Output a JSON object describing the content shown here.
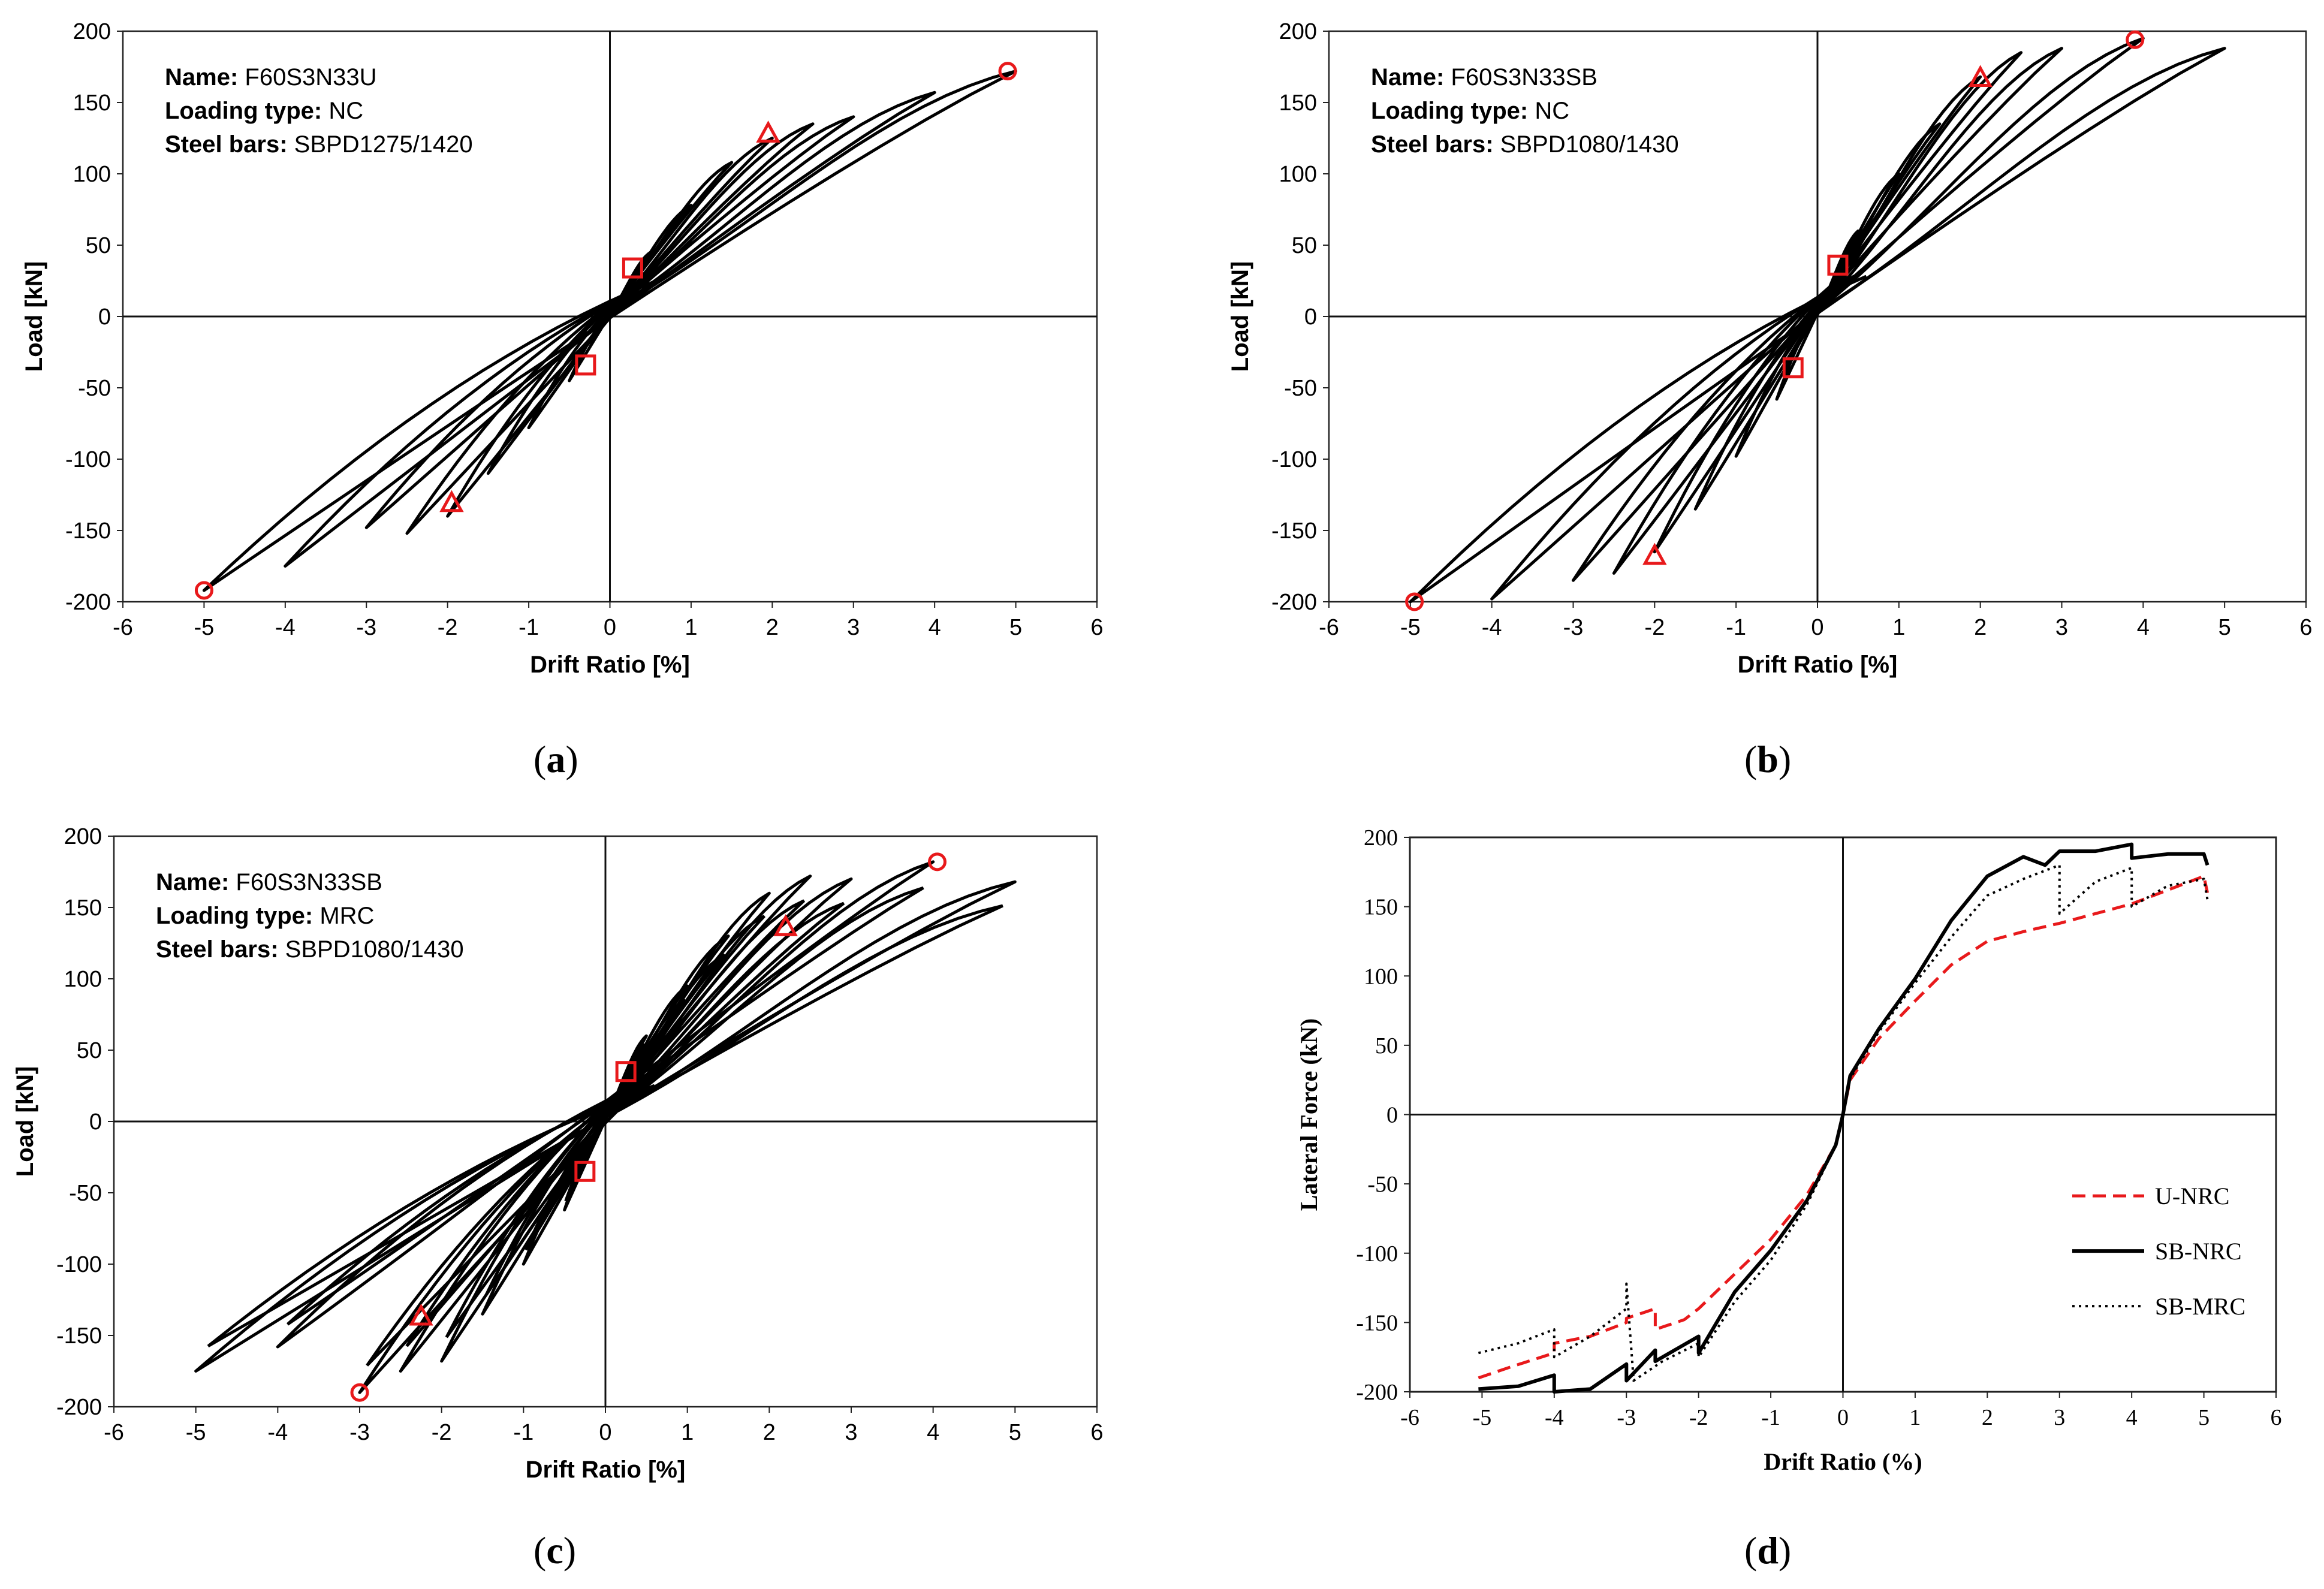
{
  "figure": {
    "captions": [
      "(a)",
      "(b)",
      "(c)",
      "(d)"
    ]
  },
  "colors": {
    "curve": "#000000",
    "marker": "#e8191b",
    "u_nrc": "#e8191b"
  },
  "chart_data": [
    {
      "id": "a",
      "type": "line",
      "caption_letter": "a",
      "xlabel": "Drift Ratio [%]",
      "ylabel": "Load [kN]",
      "xlim": [
        -6,
        6
      ],
      "ylim": [
        -200,
        200
      ],
      "xticks": [
        -6,
        -5,
        -4,
        -3,
        -2,
        -1,
        0,
        1,
        2,
        3,
        4,
        5,
        6
      ],
      "yticks": [
        -200,
        -150,
        -100,
        -50,
        0,
        50,
        100,
        150,
        200
      ],
      "info": [
        {
          "key": "Name:",
          "value": "F60S3N33U"
        },
        {
          "key": "Loading type:",
          "value": "NC"
        },
        {
          "key": "Steel bars:",
          "value": "SBPD1275/1420"
        }
      ],
      "cycles": [
        {
          "dpos": 0.5,
          "ppos": 45,
          "dneg": -0.5,
          "pneg": -45
        },
        {
          "dpos": 1.0,
          "ppos": 78,
          "dneg": -1.0,
          "pneg": -78
        },
        {
          "dpos": 1.5,
          "ppos": 108,
          "dneg": -1.5,
          "pneg": -110
        },
        {
          "dpos": 2.0,
          "ppos": 125,
          "dneg": -2.0,
          "pneg": -140
        },
        {
          "dpos": 2.5,
          "ppos": 135,
          "dneg": -2.5,
          "pneg": -152
        },
        {
          "dpos": 3.0,
          "ppos": 140,
          "dneg": -3.0,
          "pneg": -148
        },
        {
          "dpos": 4.0,
          "ppos": 157,
          "dneg": -4.0,
          "pneg": -175
        },
        {
          "dpos": 5.0,
          "ppos": 172,
          "dneg": -5.0,
          "pneg": -192
        }
      ],
      "markers": [
        {
          "shape": "circle",
          "x": 4.9,
          "y": 172
        },
        {
          "shape": "circle",
          "x": -5.0,
          "y": -192
        },
        {
          "shape": "triangle",
          "x": 1.95,
          "y": 128
        },
        {
          "shape": "triangle",
          "x": -1.95,
          "y": -131
        },
        {
          "shape": "square",
          "x": 0.28,
          "y": 34
        },
        {
          "shape": "square",
          "x": -0.3,
          "y": -34
        }
      ]
    },
    {
      "id": "b",
      "type": "line",
      "caption_letter": "b",
      "xlabel": "Drift Ratio [%]",
      "ylabel": "Load [kN]",
      "xlim": [
        -6,
        6
      ],
      "ylim": [
        -200,
        200
      ],
      "xticks": [
        -6,
        -5,
        -4,
        -3,
        -2,
        -1,
        0,
        1,
        2,
        3,
        4,
        5,
        6
      ],
      "yticks": [
        -200,
        -150,
        -100,
        -50,
        0,
        50,
        100,
        150,
        200
      ],
      "info": [
        {
          "key": "Name:",
          "value": "F60S3N33SB"
        },
        {
          "key": "Loading type:",
          "value": "NC"
        },
        {
          "key": "Steel bars:",
          "value": "SBPD1080/1430"
        }
      ],
      "cycles": [
        {
          "dpos": 0.5,
          "ppos": 60,
          "dneg": -0.5,
          "pneg": -58
        },
        {
          "dpos": 1.0,
          "ppos": 100,
          "dneg": -1.0,
          "pneg": -98
        },
        {
          "dpos": 1.5,
          "ppos": 135,
          "dneg": -1.5,
          "pneg": -135
        },
        {
          "dpos": 2.0,
          "ppos": 168,
          "dneg": -2.0,
          "pneg": -165
        },
        {
          "dpos": 2.5,
          "ppos": 185,
          "dneg": -2.5,
          "pneg": -180
        },
        {
          "dpos": 3.0,
          "ppos": 188,
          "dneg": -3.0,
          "pneg": -185
        },
        {
          "dpos": 4.0,
          "ppos": 195,
          "dneg": -4.0,
          "pneg": -198
        },
        {
          "dpos": 5.0,
          "ppos": 188,
          "dneg": -5.0,
          "pneg": -200
        }
      ],
      "markers": [
        {
          "shape": "circle",
          "x": 3.9,
          "y": 194
        },
        {
          "shape": "circle",
          "x": -4.95,
          "y": -200
        },
        {
          "shape": "triangle",
          "x": 2.0,
          "y": 167
        },
        {
          "shape": "triangle",
          "x": -2.0,
          "y": -168
        },
        {
          "shape": "square",
          "x": 0.25,
          "y": 36
        },
        {
          "shape": "square",
          "x": -0.3,
          "y": -36
        }
      ]
    },
    {
      "id": "c",
      "type": "line",
      "caption_letter": "c",
      "xlabel": "Drift Ratio [%]",
      "ylabel": "Load [kN]",
      "xlim": [
        -6,
        6
      ],
      "ylim": [
        -200,
        200
      ],
      "xticks": [
        -6,
        -5,
        -4,
        -3,
        -2,
        -1,
        0,
        1,
        2,
        3,
        4,
        5,
        6
      ],
      "yticks": [
        -200,
        -150,
        -100,
        -50,
        0,
        50,
        100,
        150,
        200
      ],
      "info": [
        {
          "key": "Name:",
          "value": "F60S3N33SB"
        },
        {
          "key": "Loading type:",
          "value": "MRC"
        },
        {
          "key": "Steel bars:",
          "value": "SBPD1080/1430"
        }
      ],
      "cycles": [
        {
          "dpos": 0.5,
          "ppos": 60,
          "dneg": -0.5,
          "pneg": -62
        },
        {
          "dpos": 1.0,
          "ppos": 95,
          "dneg": -1.0,
          "pneg": -100
        },
        {
          "dpos": 1.5,
          "ppos": 130,
          "dneg": -1.5,
          "pneg": -135
        },
        {
          "dpos": 2.0,
          "ppos": 160,
          "dneg": -2.0,
          "pneg": -168
        },
        {
          "dpos": 2.5,
          "ppos": 172,
          "dneg": -2.5,
          "pneg": -175
        },
        {
          "dpos": 3.0,
          "ppos": 170,
          "dneg": -3.0,
          "pneg": -190
        },
        {
          "dpos": 4.0,
          "ppos": 182,
          "dneg": -4.0,
          "pneg": -158
        },
        {
          "dpos": 5.0,
          "ppos": 168,
          "dneg": -5.0,
          "pneg": -175
        }
      ],
      "markers": [
        {
          "shape": "circle",
          "x": 4.05,
          "y": 182
        },
        {
          "shape": "circle",
          "x": -3.0,
          "y": -190
        },
        {
          "shape": "triangle",
          "x": 2.2,
          "y": 136
        },
        {
          "shape": "triangle",
          "x": -2.25,
          "y": -137
        },
        {
          "shape": "square",
          "x": 0.25,
          "y": 35
        },
        {
          "shape": "square",
          "x": -0.25,
          "y": -35
        }
      ]
    },
    {
      "id": "d",
      "type": "line",
      "caption_letter": "d",
      "xlabel": "Drift Ratio (%)",
      "ylabel": "Lateral Force (kN)",
      "xlim": [
        -6,
        6
      ],
      "ylim": [
        -200,
        200
      ],
      "xticks": [
        -6,
        -5,
        -4,
        -3,
        -2,
        -1,
        0,
        1,
        2,
        3,
        4,
        5,
        6
      ],
      "yticks": [
        -200,
        -150,
        -100,
        -50,
        0,
        50,
        100,
        150,
        200
      ],
      "legend_position": "lower-right",
      "series": [
        {
          "name": "U-NRC",
          "style": "dashed",
          "points": [
            [
              -5.05,
              -190
            ],
            [
              -4.6,
              -182
            ],
            [
              -4.0,
              -172
            ],
            [
              -4.0,
              -165
            ],
            [
              -3.5,
              -160
            ],
            [
              -3.0,
              -150
            ],
            [
              -3.0,
              -147
            ],
            [
              -2.6,
              -140
            ],
            [
              -2.6,
              -155
            ],
            [
              -2.2,
              -148
            ],
            [
              -2.0,
              -140
            ],
            [
              -1.5,
              -115
            ],
            [
              -1.0,
              -90
            ],
            [
              -0.5,
              -58
            ],
            [
              -0.1,
              -22
            ],
            [
              0,
              0
            ],
            [
              0.1,
              25
            ],
            [
              0.5,
              55
            ],
            [
              1.0,
              82
            ],
            [
              1.5,
              108
            ],
            [
              2.0,
              125
            ],
            [
              2.5,
              132
            ],
            [
              3.0,
              138
            ],
            [
              3.5,
              145
            ],
            [
              4.0,
              152
            ],
            [
              4.5,
              162
            ],
            [
              5.0,
              172
            ],
            [
              5.05,
              160
            ]
          ]
        },
        {
          "name": "SB-NRC",
          "style": "solid",
          "points": [
            [
              -5.05,
              -198
            ],
            [
              -4.5,
              -196
            ],
            [
              -4.0,
              -188
            ],
            [
              -4.0,
              -200
            ],
            [
              -3.5,
              -198
            ],
            [
              -3.0,
              -180
            ],
            [
              -3.0,
              -192
            ],
            [
              -2.6,
              -170
            ],
            [
              -2.6,
              -178
            ],
            [
              -2.0,
              -160
            ],
            [
              -2.0,
              -172
            ],
            [
              -1.5,
              -128
            ],
            [
              -1.0,
              -98
            ],
            [
              -0.5,
              -62
            ],
            [
              -0.1,
              -22
            ],
            [
              0,
              0
            ],
            [
              0.1,
              28
            ],
            [
              0.5,
              62
            ],
            [
              1.0,
              98
            ],
            [
              1.5,
              140
            ],
            [
              2.0,
              172
            ],
            [
              2.5,
              186
            ],
            [
              2.8,
              180
            ],
            [
              3.0,
              190
            ],
            [
              3.5,
              190
            ],
            [
              4.0,
              195
            ],
            [
              4.0,
              185
            ],
            [
              4.5,
              188
            ],
            [
              5.0,
              188
            ],
            [
              5.05,
              180
            ]
          ]
        },
        {
          "name": "SB-MRC",
          "style": "dotted",
          "points": [
            [
              -5.05,
              -172
            ],
            [
              -4.5,
              -165
            ],
            [
              -4.0,
              -155
            ],
            [
              -4.0,
              -175
            ],
            [
              -3.5,
              -160
            ],
            [
              -3.0,
              -140
            ],
            [
              -3.0,
              -122
            ],
            [
              -2.9,
              -192
            ],
            [
              -2.5,
              -178
            ],
            [
              -2.0,
              -165
            ],
            [
              -2.0,
              -175
            ],
            [
              -1.5,
              -135
            ],
            [
              -1.0,
              -105
            ],
            [
              -0.5,
              -65
            ],
            [
              -0.1,
              -22
            ],
            [
              0,
              0
            ],
            [
              0.1,
              26
            ],
            [
              0.5,
              60
            ],
            [
              1.0,
              95
            ],
            [
              1.5,
              128
            ],
            [
              2.0,
              158
            ],
            [
              2.5,
              170
            ],
            [
              3.0,
              180
            ],
            [
              3.0,
              145
            ],
            [
              3.5,
              168
            ],
            [
              4.0,
              178
            ],
            [
              4.0,
              150
            ],
            [
              4.5,
              165
            ],
            [
              5.0,
              170
            ],
            [
              5.05,
              155
            ]
          ]
        }
      ]
    }
  ]
}
